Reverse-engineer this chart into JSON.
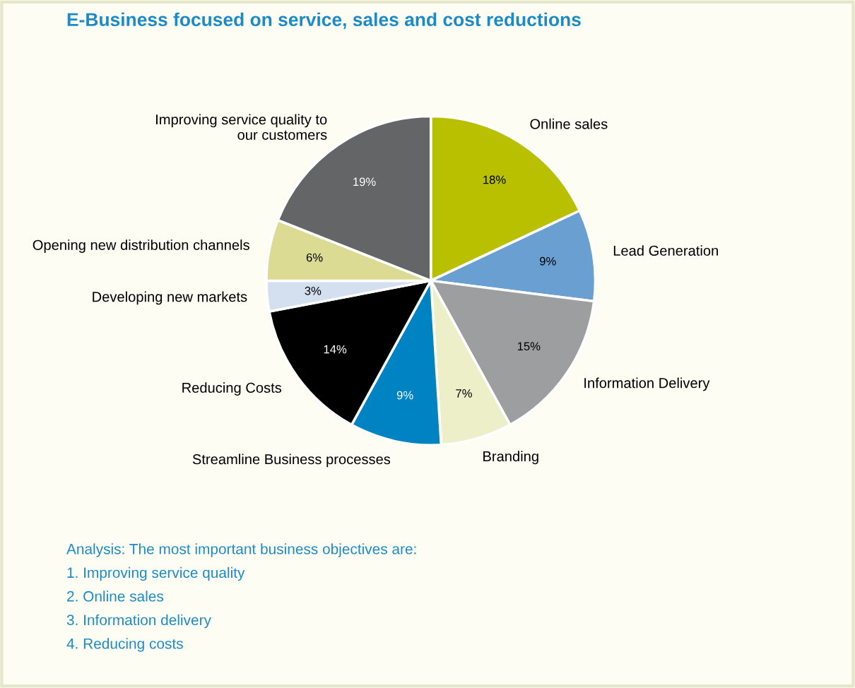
{
  "chart_data": {
    "type": "pie",
    "title": "E-Business focused on service, sales and cost reductions",
    "categories": [
      "Online sales",
      "Lead Generation",
      "Information Delivery",
      "Branding",
      "Streamline Business processes",
      "Reducing Costs",
      "Developing new markets",
      "Opening new distribution channels",
      "Improving service quality to\nour customers"
    ],
    "values": [
      18,
      9,
      15,
      7,
      9,
      14,
      3,
      6,
      19
    ],
    "value_labels": [
      "18%",
      "9%",
      "15%",
      "7%",
      "9%",
      "14%",
      "3%",
      "6%",
      "19%"
    ],
    "colors": [
      "#b9c000",
      "#6a9fd2",
      "#9d9ea0",
      "#ecefc8",
      "#0083c3",
      "#000000",
      "#d4dff0",
      "#dcdb94",
      "#646567"
    ],
    "annotations": [
      "Analysis: The most important business objectives are:",
      "1. Improving service quality",
      "2. Online sales",
      "3. Information delivery",
      "4. Reducing costs"
    ]
  }
}
